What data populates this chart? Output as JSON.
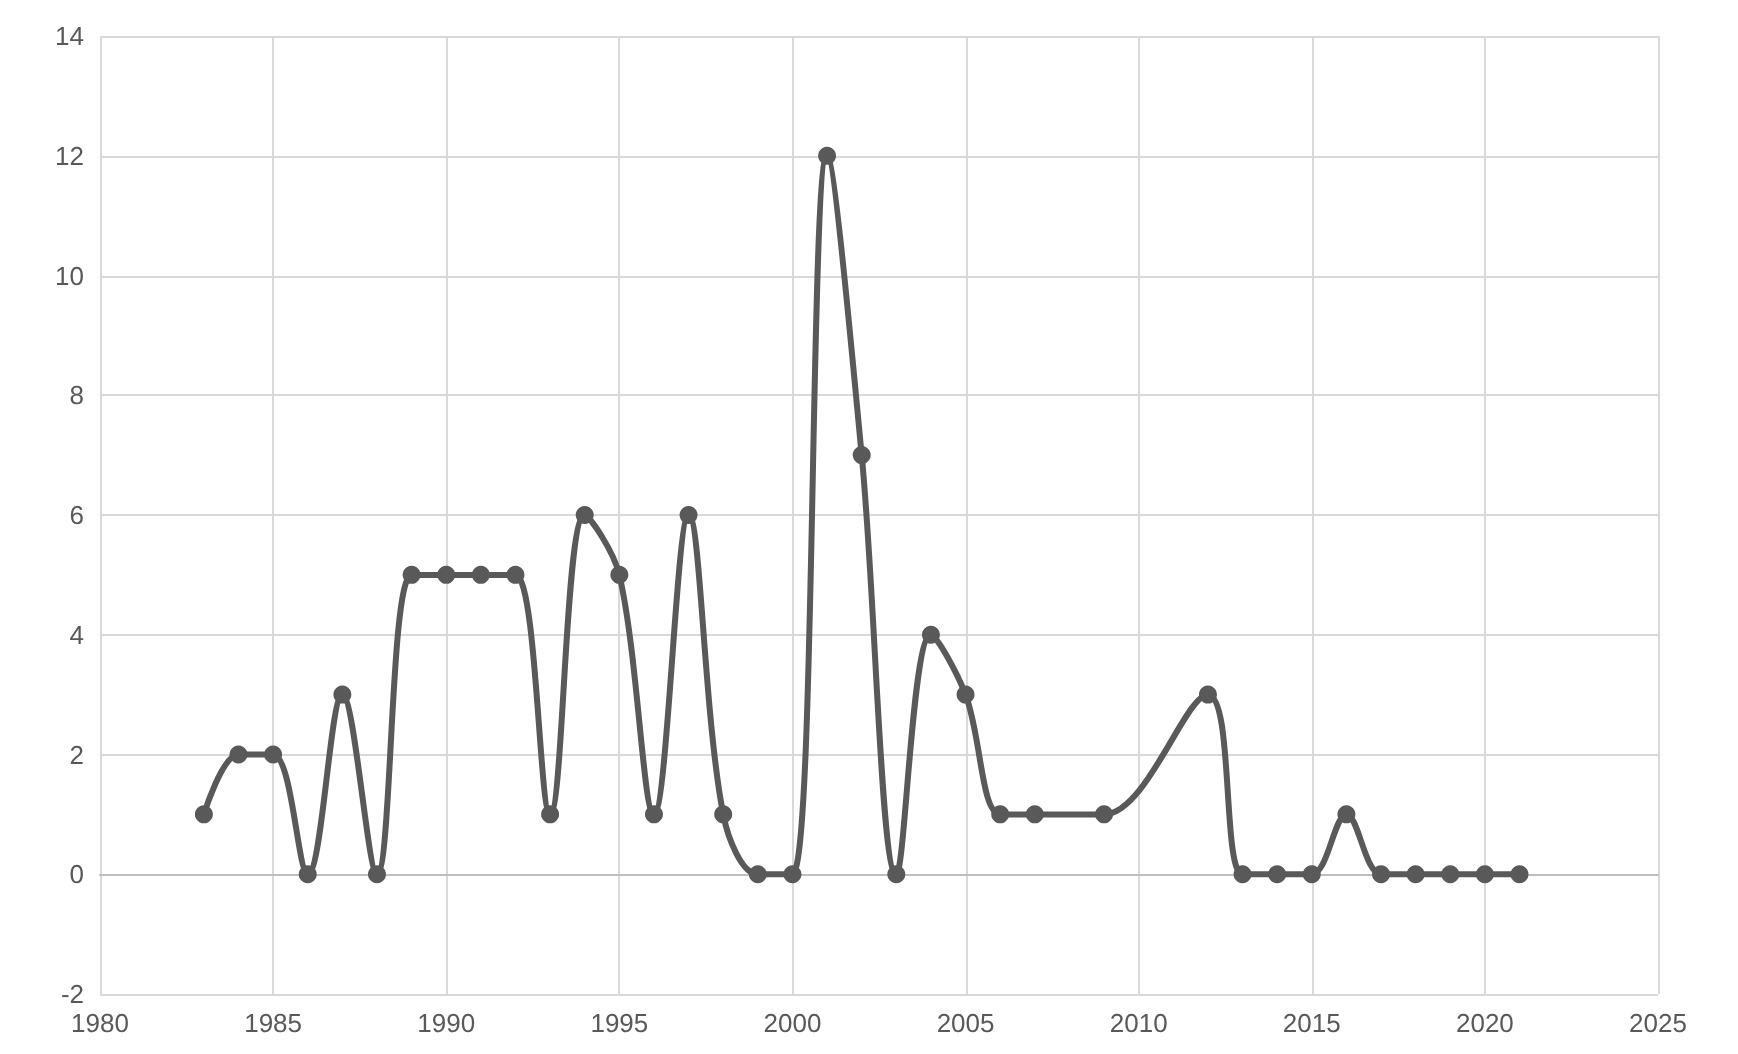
{
  "chart_data": {
    "type": "line",
    "x": [
      1983,
      1984,
      1985,
      1986,
      1987,
      1988,
      1989,
      1990,
      1991,
      1992,
      1993,
      1994,
      1995,
      1996,
      1997,
      1998,
      1999,
      2000,
      2001,
      2002,
      2003,
      2004,
      2005,
      2006,
      2007,
      2009,
      2012,
      2013,
      2014,
      2015,
      2016,
      2017,
      2018,
      2019,
      2020,
      2021
    ],
    "series": [
      {
        "color": "#595959",
        "values": [
          1,
          2,
          2,
          0,
          3,
          0,
          5,
          5,
          5,
          5,
          1,
          6,
          5,
          1,
          6,
          1,
          0,
          0,
          12,
          7,
          0,
          4,
          3,
          1,
          1,
          1,
          3,
          0,
          0,
          0,
          1,
          0,
          0,
          0,
          0,
          0
        ]
      }
    ],
    "xlim": [
      1980,
      2025
    ],
    "xticks": [
      1980,
      1985,
      1990,
      1995,
      2000,
      2005,
      2010,
      2015,
      2020,
      2025
    ],
    "ylim": [
      -2,
      14
    ],
    "yticks": [
      -2,
      0,
      2,
      4,
      6,
      8,
      10,
      12,
      14
    ],
    "grid": true,
    "marker": "circle",
    "line_style": "solid"
  }
}
